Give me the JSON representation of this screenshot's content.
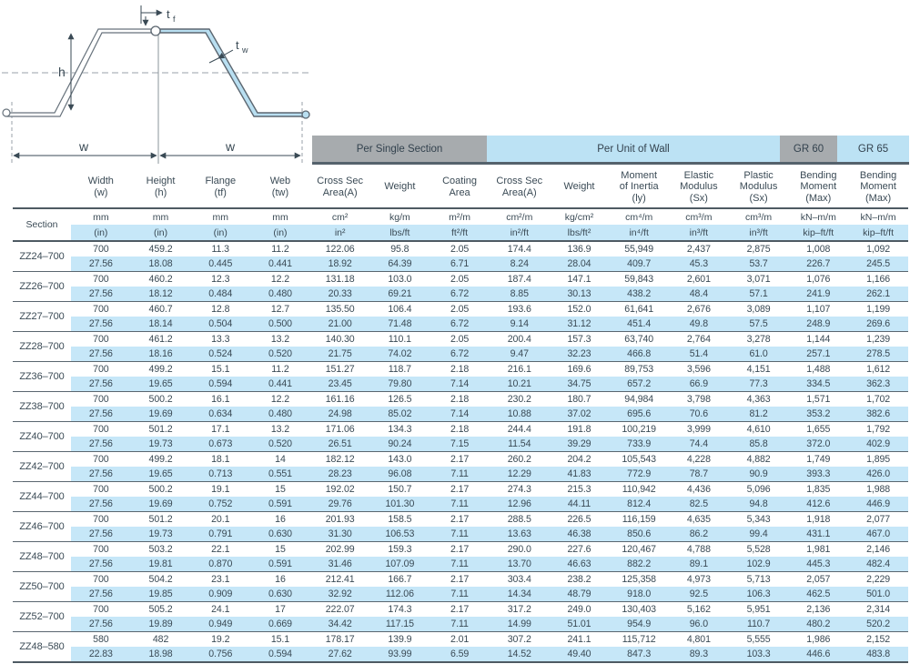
{
  "colors": {
    "stripe_blue": "#c6e7f8",
    "bar_gray": "#a7abae",
    "bar_blue": "#bce2f4",
    "rule_dark": "#4e5a63",
    "text": "#3a4a55",
    "profile_fill": "#b9dff1"
  },
  "diagram": {
    "h_label": "h",
    "w_left_label": "w",
    "w_right_label": "w",
    "tf": {
      "base": "t",
      "sub": "f"
    },
    "tw": {
      "base": "t",
      "sub": "w"
    }
  },
  "header": {
    "groups": [
      {
        "label": "Per Single Section"
      },
      {
        "label": "Per Unit of Wall"
      },
      {
        "label": "GR 60"
      },
      {
        "label": "GR 65"
      }
    ]
  },
  "table": {
    "section_label": "Section",
    "columns": [
      {
        "title": "Width\n(w)",
        "metric_unit": "mm",
        "imperial_unit": "(in)"
      },
      {
        "title": "Height\n(h)",
        "metric_unit": "mm",
        "imperial_unit": "(in)"
      },
      {
        "title": "Flange\n(tf)",
        "metric_unit": "mm",
        "imperial_unit": "(in)"
      },
      {
        "title": "Web\n(tw)",
        "metric_unit": "mm",
        "imperial_unit": "(in)"
      },
      {
        "title": "Cross Sec\nArea(A)",
        "metric_unit": "cm²",
        "imperial_unit": "in²"
      },
      {
        "title": "Weight",
        "metric_unit": "kg/m",
        "imperial_unit": "lbs/ft"
      },
      {
        "title": "Coating\nArea",
        "metric_unit": "m²/m",
        "imperial_unit": "ft²/ft"
      },
      {
        "title": "Cross Sec\nArea(A)",
        "metric_unit": "cm²/m",
        "imperial_unit": "in²/ft"
      },
      {
        "title": "Weight",
        "metric_unit": "kg/cm²",
        "imperial_unit": "lbs/ft²"
      },
      {
        "title": "Moment\nof Inertia\n(ly)",
        "metric_unit": "cm⁴/m",
        "imperial_unit": "in⁴/ft"
      },
      {
        "title": "Elastic\nModulus\n(Sx)",
        "metric_unit": "cm³/m",
        "imperial_unit": "in³/ft"
      },
      {
        "title": "Plastic\nModulus\n(Sx)",
        "metric_unit": "cm³/m",
        "imperial_unit": "in³/ft"
      },
      {
        "title": "Bending\nMoment\n(Max)",
        "metric_unit": "kN–m/m",
        "imperial_unit": "kip–ft/ft"
      },
      {
        "title": "Bending\nMoment\n(Max)",
        "metric_unit": "kN–m/m",
        "imperial_unit": "kip–ft/ft"
      }
    ],
    "rows": [
      {
        "section": "ZZ24–700",
        "metric": [
          "700",
          "459.2",
          "11.3",
          "11.2",
          "122.06",
          "95.8",
          "2.05",
          "174.4",
          "136.9",
          "55,949",
          "2,437",
          "2,875",
          "1,008",
          "1,092"
        ],
        "imperial": [
          "27.56",
          "18.08",
          "0.445",
          "0.441",
          "18.92",
          "64.39",
          "6.71",
          "8.24",
          "28.04",
          "409.7",
          "45.3",
          "53.7",
          "226.7",
          "245.5"
        ]
      },
      {
        "section": "ZZ26–700",
        "metric": [
          "700",
          "460.2",
          "12.3",
          "12.2",
          "131.18",
          "103.0",
          "2.05",
          "187.4",
          "147.1",
          "59,843",
          "2,601",
          "3,071",
          "1,076",
          "1,166"
        ],
        "imperial": [
          "27.56",
          "18.12",
          "0.484",
          "0.480",
          "20.33",
          "69.21",
          "6.72",
          "8.85",
          "30.13",
          "438.2",
          "48.4",
          "57.1",
          "241.9",
          "262.1"
        ]
      },
      {
        "section": "ZZ27–700",
        "metric": [
          "700",
          "460.7",
          "12.8",
          "12.7",
          "135.50",
          "106.4",
          "2.05",
          "193.6",
          "152.0",
          "61,641",
          "2,676",
          "3,089",
          "1,107",
          "1,199"
        ],
        "imperial": [
          "27.56",
          "18.14",
          "0.504",
          "0.500",
          "21.00",
          "71.48",
          "6.72",
          "9.14",
          "31.12",
          "451.4",
          "49.8",
          "57.5",
          "248.9",
          "269.6"
        ]
      },
      {
        "section": "ZZ28–700",
        "metric": [
          "700",
          "461.2",
          "13.3",
          "13.2",
          "140.30",
          "110.1",
          "2.05",
          "200.4",
          "157.3",
          "63,740",
          "2,764",
          "3,278",
          "1,144",
          "1,239"
        ],
        "imperial": [
          "27.56",
          "18.16",
          "0.524",
          "0.520",
          "21.75",
          "74.02",
          "6.72",
          "9.47",
          "32.23",
          "466.8",
          "51.4",
          "61.0",
          "257.1",
          "278.5"
        ]
      },
      {
        "section": "ZZ36–700",
        "metric": [
          "700",
          "499.2",
          "15.1",
          "11.2",
          "151.27",
          "118.7",
          "2.18",
          "216.1",
          "169.6",
          "89,753",
          "3,596",
          "4,151",
          "1,488",
          "1,612"
        ],
        "imperial": [
          "27.56",
          "19.65",
          "0.594",
          "0.441",
          "23.45",
          "79.80",
          "7.14",
          "10.21",
          "34.75",
          "657.2",
          "66.9",
          "77.3",
          "334.5",
          "362.3"
        ]
      },
      {
        "section": "ZZ38–700",
        "metric": [
          "700",
          "500.2",
          "16.1",
          "12.2",
          "161.16",
          "126.5",
          "2.18",
          "230.2",
          "180.7",
          "94,984",
          "3,798",
          "4,363",
          "1,571",
          "1,702"
        ],
        "imperial": [
          "27.56",
          "19.69",
          "0.634",
          "0.480",
          "24.98",
          "85.02",
          "7.14",
          "10.88",
          "37.02",
          "695.6",
          "70.6",
          "81.2",
          "353.2",
          "382.6"
        ]
      },
      {
        "section": "ZZ40–700",
        "metric": [
          "700",
          "501.2",
          "17.1",
          "13.2",
          "171.06",
          "134.3",
          "2.18",
          "244.4",
          "191.8",
          "100,219",
          "3,999",
          "4,610",
          "1,655",
          "1,792"
        ],
        "imperial": [
          "27.56",
          "19.73",
          "0.673",
          "0.520",
          "26.51",
          "90.24",
          "7.15",
          "11.54",
          "39.29",
          "733.9",
          "74.4",
          "85.8",
          "372.0",
          "402.9"
        ]
      },
      {
        "section": "ZZ42–700",
        "metric": [
          "700",
          "499.2",
          "18.1",
          "14",
          "182.12",
          "143.0",
          "2.17",
          "260.2",
          "204.2",
          "105,543",
          "4,228",
          "4,882",
          "1,749",
          "1,895"
        ],
        "imperial": [
          "27.56",
          "19.65",
          "0.713",
          "0.551",
          "28.23",
          "96.08",
          "7.11",
          "12.29",
          "41.83",
          "772.9",
          "78.7",
          "90.9",
          "393.3",
          "426.0"
        ]
      },
      {
        "section": "ZZ44–700",
        "metric": [
          "700",
          "500.2",
          "19.1",
          "15",
          "192.02",
          "150.7",
          "2.17",
          "274.3",
          "215.3",
          "110,942",
          "4,436",
          "5,096",
          "1,835",
          "1,988"
        ],
        "imperial": [
          "27.56",
          "19.69",
          "0.752",
          "0.591",
          "29.76",
          "101.30",
          "7.11",
          "12.96",
          "44.11",
          "812.4",
          "82.5",
          "94.8",
          "412.6",
          "446.9"
        ]
      },
      {
        "section": "ZZ46–700",
        "metric": [
          "700",
          "501.2",
          "20.1",
          "16",
          "201.93",
          "158.5",
          "2.17",
          "288.5",
          "226.5",
          "116,159",
          "4,635",
          "5,343",
          "1,918",
          "2,077"
        ],
        "imperial": [
          "27.56",
          "19.73",
          "0.791",
          "0.630",
          "31.30",
          "106.53",
          "7.11",
          "13.63",
          "46.38",
          "850.6",
          "86.2",
          "99.4",
          "431.1",
          "467.0"
        ]
      },
      {
        "section": "ZZ48–700",
        "metric": [
          "700",
          "503.2",
          "22.1",
          "15",
          "202.99",
          "159.3",
          "2.17",
          "290.0",
          "227.6",
          "120,467",
          "4,788",
          "5,528",
          "1,981",
          "2,146"
        ],
        "imperial": [
          "27.56",
          "19.81",
          "0.870",
          "0.591",
          "31.46",
          "107.09",
          "7.11",
          "13.70",
          "46.63",
          "882.2",
          "89.1",
          "102.9",
          "445.3",
          "482.4"
        ]
      },
      {
        "section": "ZZ50–700",
        "metric": [
          "700",
          "504.2",
          "23.1",
          "16",
          "212.41",
          "166.7",
          "2.17",
          "303.4",
          "238.2",
          "125,358",
          "4,973",
          "5,713",
          "2,057",
          "2,229"
        ],
        "imperial": [
          "27.56",
          "19.85",
          "0.909",
          "0.630",
          "32.92",
          "112.06",
          "7.11",
          "14.34",
          "48.79",
          "918.0",
          "92.5",
          "106.3",
          "462.5",
          "501.0"
        ]
      },
      {
        "section": "ZZ52–700",
        "metric": [
          "700",
          "505.2",
          "24.1",
          "17",
          "222.07",
          "174.3",
          "2.17",
          "317.2",
          "249.0",
          "130,403",
          "5,162",
          "5,951",
          "2,136",
          "2,314"
        ],
        "imperial": [
          "27.56",
          "19.89",
          "0.949",
          "0.669",
          "34.42",
          "117.15",
          "7.11",
          "14.99",
          "51.01",
          "954.9",
          "96.0",
          "110.7",
          "480.2",
          "520.2"
        ]
      },
      {
        "section": "ZZ48–580",
        "metric": [
          "580",
          "482",
          "19.2",
          "15.1",
          "178.17",
          "139.9",
          "2.01",
          "307.2",
          "241.1",
          "115,712",
          "4,801",
          "5,555",
          "1,986",
          "2,152"
        ],
        "imperial": [
          "22.83",
          "18.98",
          "0.756",
          "0.594",
          "27.62",
          "93.99",
          "6.59",
          "14.52",
          "49.40",
          "847.3",
          "89.3",
          "103.3",
          "446.6",
          "483.8"
        ]
      }
    ]
  }
}
